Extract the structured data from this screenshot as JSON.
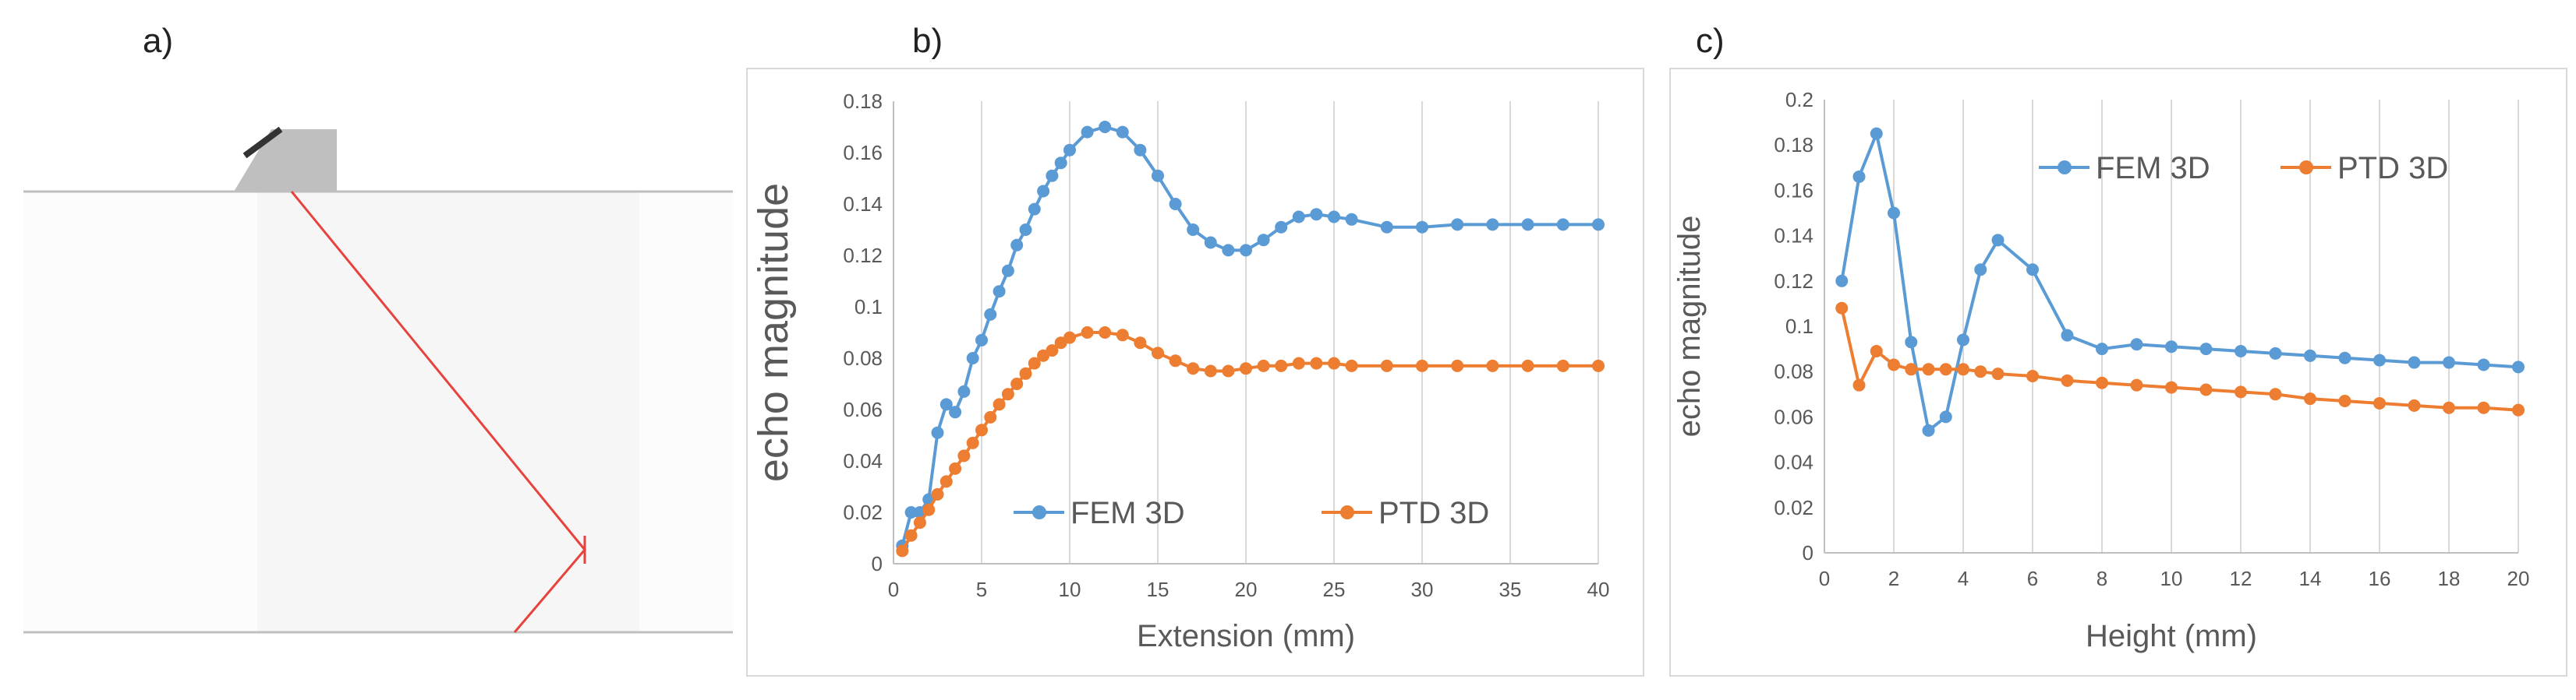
{
  "panel_labels": {
    "a": "a)",
    "b": "b)",
    "c": "c)"
  },
  "colors": {
    "fem": "#5B9BD5",
    "ptd": "#ED7D31",
    "ray": "#E8423C",
    "probe": "#BFBFBF",
    "axis": "#D9D9D9",
    "text": "#595959"
  },
  "chart_data": [
    {
      "type": "line",
      "panel": "b",
      "title": "",
      "xlabel": "Extension (mm)",
      "ylabel": "echo magnitude",
      "xlim": [
        0,
        40
      ],
      "ylim": [
        0,
        0.18
      ],
      "xticks": [
        0,
        5,
        10,
        15,
        20,
        25,
        30,
        35,
        40
      ],
      "yticks": [
        0,
        0.02,
        0.04,
        0.06,
        0.08,
        0.1,
        0.12,
        0.14,
        0.16,
        0.18
      ],
      "xtick_labels": [
        "0",
        "5",
        "10",
        "15",
        "20",
        "25",
        "30",
        "35",
        "40"
      ],
      "ytick_labels": [
        "0",
        "0.02",
        "0.04",
        "0.06",
        "0.08",
        "0.1",
        "0.12",
        "0.14",
        "0.16",
        "0.18"
      ],
      "legend_position": "bottom-center",
      "series": [
        {
          "name": "FEM 3D",
          "x": [
            0.5,
            1,
            1.5,
            2,
            2.5,
            3,
            3.5,
            4,
            4.5,
            5,
            5.5,
            6,
            6.5,
            7,
            7.5,
            8,
            8.5,
            9,
            9.5,
            10,
            11,
            12,
            13,
            14,
            15,
            16,
            17,
            18,
            19,
            20,
            21,
            22,
            23,
            24,
            25,
            26,
            28,
            30,
            32,
            34,
            36,
            38,
            40
          ],
          "values": [
            0.007,
            0.02,
            0.02,
            0.025,
            0.051,
            0.062,
            0.059,
            0.067,
            0.08,
            0.087,
            0.097,
            0.106,
            0.114,
            0.124,
            0.13,
            0.138,
            0.145,
            0.151,
            0.156,
            0.161,
            0.168,
            0.17,
            0.168,
            0.161,
            0.151,
            0.14,
            0.13,
            0.125,
            0.122,
            0.122,
            0.126,
            0.131,
            0.135,
            0.136,
            0.135,
            0.134,
            0.131,
            0.131,
            0.132,
            0.132,
            0.132,
            0.132,
            0.132
          ]
        },
        {
          "name": "PTD 3D",
          "x": [
            0.5,
            1,
            1.5,
            2,
            2.5,
            3,
            3.5,
            4,
            4.5,
            5,
            5.5,
            6,
            6.5,
            7,
            7.5,
            8,
            8.5,
            9,
            9.5,
            10,
            11,
            12,
            13,
            14,
            15,
            16,
            17,
            18,
            19,
            20,
            21,
            22,
            23,
            24,
            25,
            26,
            28,
            30,
            32,
            34,
            36,
            38,
            40
          ],
          "values": [
            0.005,
            0.011,
            0.016,
            0.021,
            0.027,
            0.032,
            0.037,
            0.042,
            0.047,
            0.052,
            0.057,
            0.062,
            0.066,
            0.07,
            0.074,
            0.078,
            0.081,
            0.083,
            0.086,
            0.088,
            0.09,
            0.09,
            0.089,
            0.086,
            0.082,
            0.079,
            0.076,
            0.075,
            0.075,
            0.076,
            0.077,
            0.077,
            0.078,
            0.078,
            0.078,
            0.077,
            0.077,
            0.077,
            0.077,
            0.077,
            0.077,
            0.077,
            0.077
          ]
        }
      ]
    },
    {
      "type": "line",
      "panel": "c",
      "title": "",
      "xlabel": "Height (mm)",
      "ylabel": "echo magnitude",
      "xlim": [
        0,
        20
      ],
      "ylim": [
        0,
        0.2
      ],
      "xticks": [
        0,
        2,
        4,
        6,
        8,
        10,
        12,
        14,
        16,
        18,
        20
      ],
      "yticks": [
        0,
        0.02,
        0.04,
        0.06,
        0.08,
        0.1,
        0.12,
        0.14,
        0.16,
        0.18,
        0.2
      ],
      "xtick_labels": [
        "0",
        "2",
        "4",
        "6",
        "8",
        "10",
        "12",
        "14",
        "16",
        "18",
        "20"
      ],
      "ytick_labels": [
        "0",
        "0.02",
        "0.04",
        "0.06",
        "0.08",
        "0.1",
        "0.12",
        "0.14",
        "0.16",
        "0.18",
        "0.2"
      ],
      "legend_position": "top",
      "series": [
        {
          "name": "FEM 3D",
          "x": [
            0.5,
            1,
            1.5,
            2,
            2.5,
            3,
            3.5,
            4,
            4.5,
            5,
            6,
            7,
            8,
            9,
            10,
            11,
            12,
            13,
            14,
            15,
            16,
            17,
            18,
            19,
            20
          ],
          "values": [
            0.12,
            0.166,
            0.185,
            0.15,
            0.093,
            0.054,
            0.06,
            0.094,
            0.125,
            0.138,
            0.125,
            0.096,
            0.09,
            0.092,
            0.091,
            0.09,
            0.089,
            0.088,
            0.087,
            0.086,
            0.085,
            0.084,
            0.084,
            0.083,
            0.082
          ]
        },
        {
          "name": "PTD 3D",
          "x": [
            0.5,
            1,
            1.5,
            2,
            2.5,
            3,
            3.5,
            4,
            4.5,
            5,
            6,
            7,
            8,
            9,
            10,
            11,
            12,
            13,
            14,
            15,
            16,
            17,
            18,
            19,
            20
          ],
          "values": [
            0.108,
            0.074,
            0.089,
            0.083,
            0.081,
            0.081,
            0.081,
            0.081,
            0.08,
            0.079,
            0.078,
            0.076,
            0.075,
            0.074,
            0.073,
            0.072,
            0.071,
            0.07,
            0.068,
            0.067,
            0.066,
            0.065,
            0.064,
            0.064,
            0.063
          ]
        }
      ]
    }
  ]
}
